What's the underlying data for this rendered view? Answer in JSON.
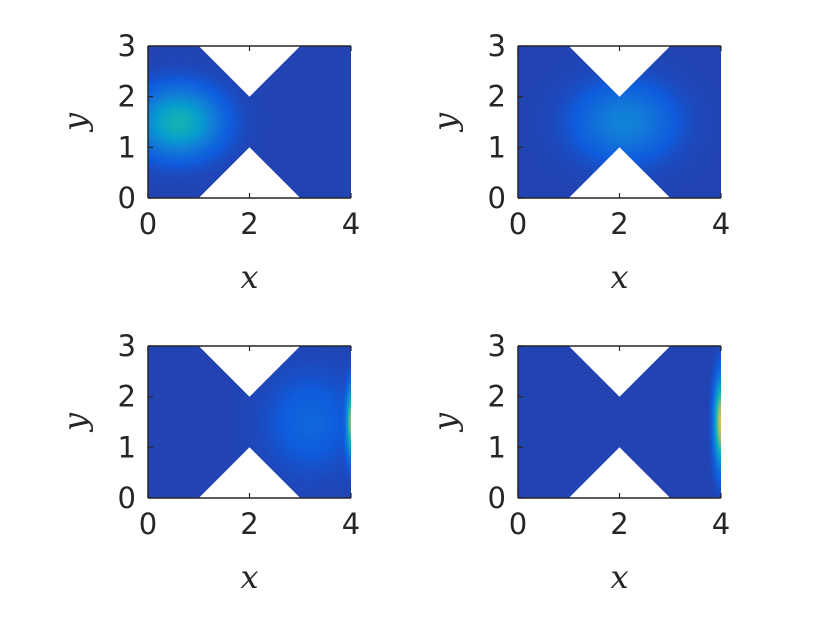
{
  "chart_data": [
    {
      "type": "heatmap",
      "panel": "top-left",
      "xlabel": "x",
      "ylabel": "y",
      "xlim": [
        0,
        4
      ],
      "ylim": [
        0,
        3
      ],
      "xticks": [
        0,
        2,
        4
      ],
      "yticks": [
        0,
        1,
        2,
        3
      ],
      "domain_cutouts": [
        {
          "edge": "top",
          "points": [
            [
              1,
              3
            ],
            [
              3,
              3
            ],
            [
              2,
              2
            ]
          ]
        },
        {
          "edge": "bottom",
          "points": [
            [
              1,
              0
            ],
            [
              3,
              0
            ],
            [
              2,
              1
            ]
          ]
        }
      ],
      "field": {
        "background_level": 0.05,
        "peaks": [
          {
            "x": 0.6,
            "y": 1.5,
            "level": 0.35,
            "spread_x": 0.75,
            "spread_y": 0.6
          }
        ]
      },
      "colormap": "parula"
    },
    {
      "type": "heatmap",
      "panel": "top-right",
      "xlabel": "x",
      "ylabel": "y",
      "xlim": [
        0,
        4
      ],
      "ylim": [
        0,
        3
      ],
      "xticks": [
        0,
        2,
        4
      ],
      "yticks": [
        0,
        1,
        2,
        3
      ],
      "domain_cutouts": [
        {
          "edge": "top",
          "points": [
            [
              1,
              3
            ],
            [
              3,
              3
            ],
            [
              2,
              2
            ]
          ]
        },
        {
          "edge": "bottom",
          "points": [
            [
              1,
              0
            ],
            [
              3,
              0
            ],
            [
              2,
              1
            ]
          ]
        }
      ],
      "field": {
        "background_level": 0.05,
        "peaks": [
          {
            "x": 2.1,
            "y": 1.5,
            "level": 0.17,
            "spread_x": 0.9,
            "spread_y": 0.7
          }
        ]
      },
      "colormap": "parula"
    },
    {
      "type": "heatmap",
      "panel": "bottom-left",
      "xlabel": "x",
      "ylabel": "y",
      "xlim": [
        0,
        4
      ],
      "ylim": [
        0,
        3
      ],
      "xticks": [
        0,
        2,
        4
      ],
      "yticks": [
        0,
        1,
        2,
        3
      ],
      "domain_cutouts": [
        {
          "edge": "top",
          "points": [
            [
              1,
              3
            ],
            [
              3,
              3
            ],
            [
              2,
              2
            ]
          ]
        },
        {
          "edge": "bottom",
          "points": [
            [
              1,
              0
            ],
            [
              3,
              0
            ],
            [
              2,
              1
            ]
          ]
        }
      ],
      "field": {
        "background_level": 0.05,
        "peaks": [
          {
            "x": 3.2,
            "y": 1.5,
            "level": 0.08,
            "spread_x": 0.8,
            "spread_y": 0.9
          },
          {
            "x": 4.0,
            "y": 1.5,
            "level": 0.5,
            "spread_x": 0.08,
            "spread_y": 0.6
          }
        ]
      },
      "colormap": "parula"
    },
    {
      "type": "heatmap",
      "panel": "bottom-right",
      "xlabel": "x",
      "ylabel": "y",
      "xlim": [
        0,
        4
      ],
      "ylim": [
        0,
        3
      ],
      "xticks": [
        0,
        2,
        4
      ],
      "yticks": [
        0,
        1,
        2,
        3
      ],
      "domain_cutouts": [
        {
          "edge": "top",
          "points": [
            [
              1,
              3
            ],
            [
              3,
              3
            ],
            [
              2,
              2
            ]
          ]
        },
        {
          "edge": "bottom",
          "points": [
            [
              1,
              0
            ],
            [
              3,
              0
            ],
            [
              2,
              1
            ]
          ]
        }
      ],
      "field": {
        "background_level": 0.05,
        "peaks": [
          {
            "x": 4.0,
            "y": 1.5,
            "level": 0.65,
            "spread_x": 0.12,
            "spread_y": 0.75
          }
        ]
      },
      "colormap": "parula"
    }
  ],
  "colors": {
    "axes": "#262626",
    "cutout": "#ffffff",
    "background": "#ffffff"
  }
}
